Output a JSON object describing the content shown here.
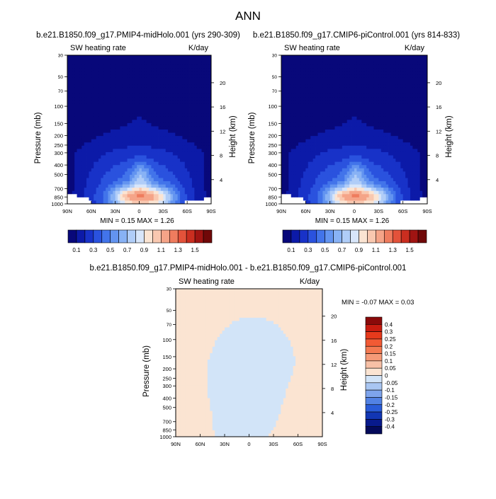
{
  "page": {
    "title": "ANN",
    "diff_title": "b.e21.B1850.f09_g17.PMIP4-midHolo.001 - b.e21.B1850.f09_g17.CMIP6-piControl.001"
  },
  "chart_data": [
    {
      "type": "heatmap",
      "panel": "case",
      "title": "b.e21.B1850.f09_g17.PMIP4-midHolo.001 (yrs 290-309)",
      "left_label": "SW heating rate",
      "right_label": "K/day",
      "xlabel": "",
      "ylabel": "Pressure (mb)",
      "y2label": "Height (km)",
      "x_ticks": [
        "90N",
        "60N",
        "30N",
        "0",
        "30S",
        "60S",
        "90S"
      ],
      "y_ticks": [
        30,
        50,
        70,
        100,
        150,
        200,
        250,
        300,
        400,
        500,
        700,
        850,
        1000
      ],
      "y2_ticks": [
        20,
        16,
        12,
        8,
        4
      ],
      "ylim": [
        1000,
        30
      ],
      "y_scale": "log",
      "stats": "MIN =   0.15  MAX =   1.26",
      "colorbar_labels": [
        "0.1",
        "0.3",
        "0.5",
        "0.7",
        "0.9",
        "1.1",
        "1.3",
        "1.5"
      ],
      "colorbar_levels": [
        0,
        0.1,
        0.2,
        0.3,
        0.4,
        0.5,
        0.6,
        0.7,
        0.8,
        0.9,
        1.0,
        1.1,
        1.2,
        1.3,
        1.4,
        1.5,
        1.6
      ],
      "colorbar_orientation": "horizontal"
    },
    {
      "type": "heatmap",
      "panel": "control",
      "title": "b.e21.B1850.f09_g17.CMIP6-piControl.001 (yrs 814-833)",
      "left_label": "SW heating rate",
      "right_label": "K/day",
      "xlabel": "",
      "ylabel": "Pressure (mb)",
      "y2label": "Height (km)",
      "x_ticks": [
        "90N",
        "60N",
        "30N",
        "0",
        "30S",
        "60S",
        "90S"
      ],
      "y_ticks": [
        30,
        50,
        70,
        100,
        150,
        200,
        250,
        300,
        400,
        500,
        700,
        850,
        1000
      ],
      "y2_ticks": [
        20,
        16,
        12,
        8,
        4
      ],
      "ylim": [
        1000,
        30
      ],
      "y_scale": "log",
      "stats": "MIN =   0.15  MAX =   1.26",
      "colorbar_labels": [
        "0.1",
        "0.3",
        "0.5",
        "0.7",
        "0.9",
        "1.1",
        "1.3",
        "1.5"
      ],
      "colorbar_levels": [
        0,
        0.1,
        0.2,
        0.3,
        0.4,
        0.5,
        0.6,
        0.7,
        0.8,
        0.9,
        1.0,
        1.1,
        1.2,
        1.3,
        1.4,
        1.5,
        1.6
      ],
      "colorbar_orientation": "horizontal"
    },
    {
      "type": "heatmap",
      "panel": "difference",
      "title": "",
      "left_label": "SW heating rate",
      "right_label": "K/day",
      "xlabel": "",
      "ylabel": "Pressure (mb)",
      "y2label": "Height (km)",
      "x_ticks": [
        "90N",
        "60N",
        "30N",
        "0",
        "30S",
        "60S",
        "90S"
      ],
      "y_ticks": [
        30,
        50,
        70,
        100,
        150,
        200,
        250,
        300,
        400,
        500,
        700,
        850,
        1000
      ],
      "y2_ticks": [
        20,
        16,
        12,
        8,
        4
      ],
      "ylim": [
        1000,
        30
      ],
      "y_scale": "log",
      "stats": "MIN =  -0.07  MAX =   0.03",
      "colorbar_labels": [
        "0.4",
        "0.3",
        "0.25",
        "0.2",
        "0.15",
        "0.1",
        "0.05",
        "0",
        "-0.05",
        "-0.1",
        "-0.15",
        "-0.2",
        "-0.25",
        "-0.3",
        "-0.4"
      ],
      "colorbar_orientation": "vertical"
    }
  ],
  "colors": {
    "seq": [
      "#08087a",
      "#0c1aa8",
      "#1832c8",
      "#2a52de",
      "#4274ea",
      "#6394f0",
      "#88b2f5",
      "#b0cdf8",
      "#d8e6fa",
      "#fbe4d2",
      "#f9c8b0",
      "#f5a488",
      "#ef7c5e",
      "#e3523a",
      "#ca2e20",
      "#a01412",
      "#700808"
    ],
    "div": [
      "#8a0a0a",
      "#c81c10",
      "#e63a1c",
      "#f25a34",
      "#f47a52",
      "#f59a78",
      "#f7c0a6",
      "#fbe4d2",
      "#d2e4f8",
      "#a9c6f2",
      "#7ea4ec",
      "#5282e4",
      "#2a5cd8",
      "#1236b4",
      "#081a8c",
      "#040a5a"
    ]
  }
}
